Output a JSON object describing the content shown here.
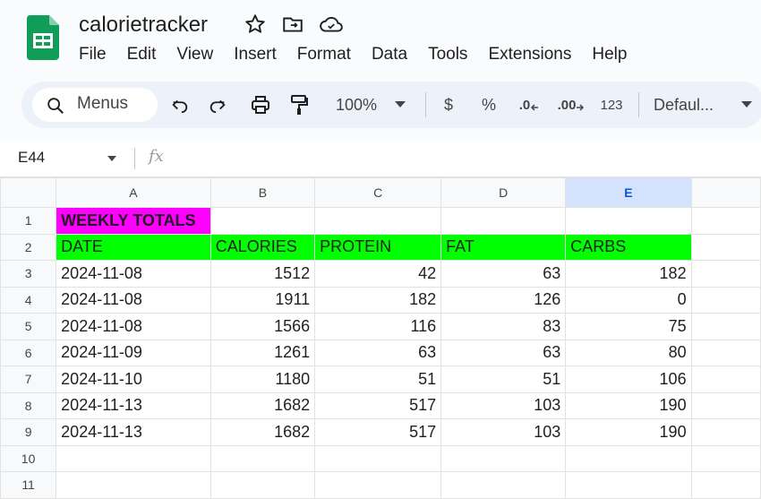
{
  "app": {
    "doc_title": "calorietracker",
    "menu": [
      "File",
      "Edit",
      "View",
      "Insert",
      "Format",
      "Data",
      "Tools",
      "Extensions",
      "Help"
    ]
  },
  "toolbar": {
    "search_label": "Menus",
    "zoom": "100%",
    "currency": "$",
    "percent": "%",
    "dec_decrease": ".0",
    "dec_increase": ".00",
    "number_format": "123",
    "font": "Defaul..."
  },
  "formula_bar": {
    "cell_ref": "E44",
    "fx": "fx",
    "formula": ""
  },
  "sheet": {
    "columns": [
      "A",
      "B",
      "C",
      "D",
      "E"
    ],
    "selected_column": "E",
    "row_numbers": [
      "1",
      "2",
      "3",
      "4",
      "5",
      "6",
      "7",
      "8",
      "9",
      "10",
      "11"
    ],
    "title_cell": "WEEKLY TOTALS",
    "headers": [
      "DATE",
      "CALORIES",
      "PROTEIN",
      "FAT",
      "CARBS"
    ],
    "rows": [
      [
        "2024-11-08",
        "1512",
        "42",
        "63",
        "182"
      ],
      [
        "2024-11-08",
        "1911",
        "182",
        "126",
        "0"
      ],
      [
        "2024-11-08",
        "1566",
        "116",
        "83",
        "75"
      ],
      [
        "2024-11-09",
        "1261",
        "63",
        "63",
        "80"
      ],
      [
        "2024-11-10",
        "1180",
        "51",
        "51",
        "106"
      ],
      [
        "2024-11-13",
        "1682",
        "517",
        "103",
        "190"
      ],
      [
        "2024-11-13",
        "1682",
        "517",
        "103",
        "190"
      ]
    ]
  },
  "colors": {
    "title_fill": "#ff00ff",
    "header_fill": "#00ff00",
    "selected_column": "#d3e3fd"
  }
}
